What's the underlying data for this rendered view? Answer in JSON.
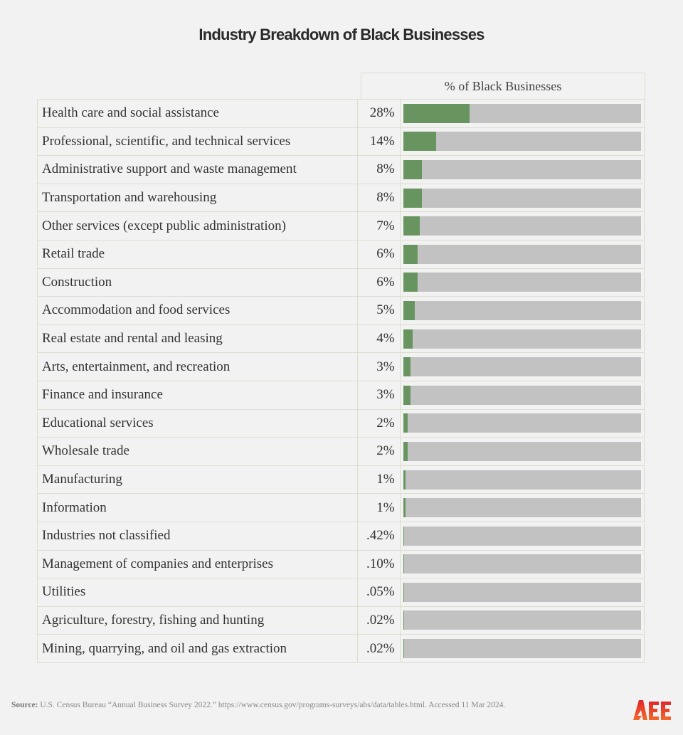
{
  "chart_data": {
    "type": "bar",
    "title": "Industry Breakdown of Black Businesses",
    "column_header": "% of Black Businesses",
    "xlim": [
      0,
      100
    ],
    "categories": [
      "Health care and social assistance",
      "Professional, scientific, and technical services",
      "Administrative support and waste management",
      "Transportation and warehousing",
      "Other services (except public administration)",
      "Retail trade",
      "Construction",
      "Accommodation and food services",
      "Real estate and rental and leasing",
      "Arts, entertainment, and recreation",
      "Finance and insurance",
      "Educational services",
      "Wholesale trade",
      "Manufacturing",
      "Information",
      "Industries not classified",
      "Management of companies and enterprises",
      "Utilities",
      "Agriculture, forestry, fishing and hunting",
      "Mining, quarrying, and oil and gas extraction"
    ],
    "values": [
      28,
      14,
      8,
      8,
      7,
      6,
      6,
      5,
      4,
      3,
      3,
      2,
      2,
      1,
      1,
      0.42,
      0.1,
      0.05,
      0.02,
      0.02
    ],
    "labels": [
      "28%",
      "14%",
      "8%",
      "8%",
      "7%",
      "6%",
      "6%",
      "5%",
      "4%",
      "3%",
      "3%",
      "2%",
      "2%",
      "1%",
      "1%",
      ".42%",
      ".10%",
      ".05%",
      ".02%",
      ".02%"
    ],
    "colors": {
      "fill": "#68955f",
      "track": "#c2c2c2"
    }
  },
  "footer": {
    "source_label": "Source:",
    "source_text": "U.S. Census Bureau “Annual Business Survey 2022.” https://www.census.gov/programs-surveys/abs/data/tables.html. Accessed 11 Mar 2024.",
    "logo": "AEE"
  }
}
